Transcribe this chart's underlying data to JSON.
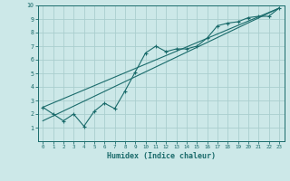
{
  "title": "",
  "xlabel": "Humidex (Indice chaleur)",
  "bg_color": "#cce8e8",
  "grid_color": "#aacece",
  "line_color": "#1a6b6b",
  "xlim": [
    -0.5,
    23.5
  ],
  "ylim": [
    0,
    10
  ],
  "xticks": [
    0,
    1,
    2,
    3,
    4,
    5,
    6,
    7,
    8,
    9,
    10,
    11,
    12,
    13,
    14,
    15,
    16,
    17,
    18,
    19,
    20,
    21,
    22,
    23
  ],
  "yticks": [
    1,
    2,
    3,
    4,
    5,
    6,
    7,
    8,
    9,
    10
  ],
  "line1_x": [
    0,
    1,
    2,
    3,
    4,
    5,
    6,
    7,
    8,
    9,
    10,
    11,
    12,
    13,
    14,
    15,
    16,
    17,
    18,
    19,
    20,
    21,
    22,
    23
  ],
  "line1_y": [
    2.5,
    2.0,
    1.5,
    2.0,
    1.1,
    2.2,
    2.8,
    2.4,
    3.7,
    5.1,
    6.5,
    7.0,
    6.6,
    6.8,
    6.8,
    7.0,
    7.6,
    8.5,
    8.7,
    8.8,
    9.1,
    9.2,
    9.2,
    9.8
  ],
  "line2_x": [
    0,
    23
  ],
  "line2_y": [
    1.5,
    9.8
  ],
  "line3_x": [
    0,
    23
  ],
  "line3_y": [
    2.5,
    9.8
  ]
}
